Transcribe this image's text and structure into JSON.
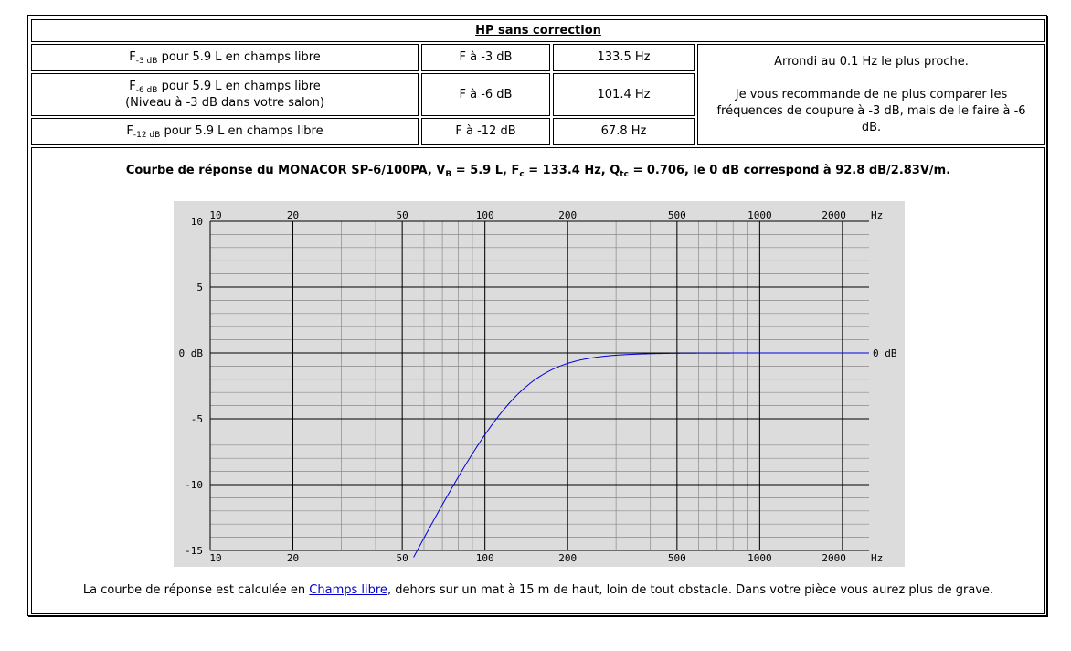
{
  "table": {
    "title": "HP sans correction",
    "rows": [
      {
        "f_sub": "-3 dB",
        "desc": "pour 5.9 L en champs libre",
        "desc2": "",
        "label": "F à -3 dB",
        "value": "133.5 Hz"
      },
      {
        "f_sub": "-6 dB",
        "desc": "pour 5.9 L en champs libre",
        "desc2": "(Niveau à -3 dB dans votre salon)",
        "label": "F à -6 dB",
        "value": "101.4 Hz"
      },
      {
        "f_sub": "-12 dB",
        "desc": "pour 5.9 L en champs libre",
        "desc2": "",
        "label": "F à -12 dB",
        "value": "67.8 Hz"
      }
    ],
    "note_line1": "Arrondi au 0.1 Hz le plus proche.",
    "note_line2": "Je vous recommande de ne plus comparer les fréquences de coupure à -3 dB, mais de le faire à -6 dB."
  },
  "chart_caption": {
    "pre": "Courbe de réponse du MONACOR SP-6/100PA, V",
    "vb_sub": "B",
    "vb_val": " = 5.9 L, F",
    "fc_sub": "c",
    "fc_val": " = 133.4 Hz, Q",
    "qtc_sub": "tc",
    "post": " = 0.706, le 0 dB correspond à 92.8 dB/2.83V/m."
  },
  "footer": {
    "pre": "La courbe de réponse est calculée en ",
    "link": "Champs libre",
    "post": ", dehors sur un mat à 15 m de haut, loin de tout obstacle. Dans votre pièce vous aurez plus de grave."
  },
  "colors": {
    "curve": "#0000dd",
    "plot_bg": "#dcdcdc"
  },
  "chart_data": {
    "type": "line",
    "x_scale": "log",
    "xlim": [
      10,
      2500
    ],
    "ylim": [
      -15,
      10
    ],
    "x_ticks": [
      10,
      20,
      50,
      100,
      200,
      500,
      1000,
      2000
    ],
    "x_tick_labels": [
      "10",
      "20",
      "50",
      "100",
      "200",
      "500",
      "1000",
      "2000"
    ],
    "x_unit": "Hz",
    "y_ticks": [
      10,
      5,
      0,
      -5,
      -10,
      -15
    ],
    "y_tick_labels": [
      "10",
      "5",
      "0 dB",
      "-5",
      "-10",
      "-15"
    ],
    "y_right_label": "0 dB",
    "grid": true,
    "series": [
      {
        "fc": 133.4,
        "qtc": 0.706,
        "x": [
          55,
          60,
          67.8,
          80,
          90,
          101.4,
          120,
          133.5,
          150,
          200,
          300,
          500,
          1000,
          2500
        ],
        "y": [
          -14.9,
          -13.5,
          -12.0,
          -9.2,
          -7.5,
          -6.0,
          -4.1,
          -3.0,
          -2.1,
          -0.8,
          -0.1,
          0.0,
          0.0,
          0.0
        ]
      }
    ]
  }
}
